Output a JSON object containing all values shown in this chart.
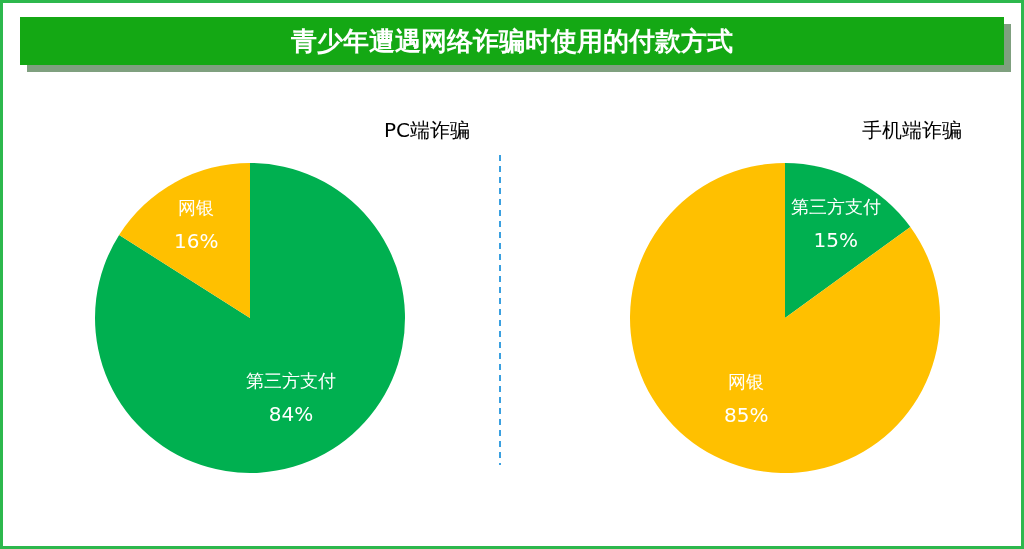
{
  "chart_data": [
    {
      "type": "other",
      "title": "青少年遭遇网络诈骗时使用的付款方式"
    },
    {
      "type": "pie",
      "title": "PC端诈骗",
      "categories": [
        "第三方支付",
        "网银"
      ],
      "values": [
        84,
        16
      ],
      "colors": [
        "#00b050",
        "#ffc000"
      ],
      "value_labels": [
        "84%",
        "16%"
      ]
    },
    {
      "type": "pie",
      "title": "手机端诈骗",
      "categories": [
        "第三方支付",
        "网银"
      ],
      "values": [
        15,
        85
      ],
      "colors": [
        "#00b050",
        "#ffc000"
      ],
      "value_labels": [
        "15%",
        "85%"
      ]
    }
  ]
}
